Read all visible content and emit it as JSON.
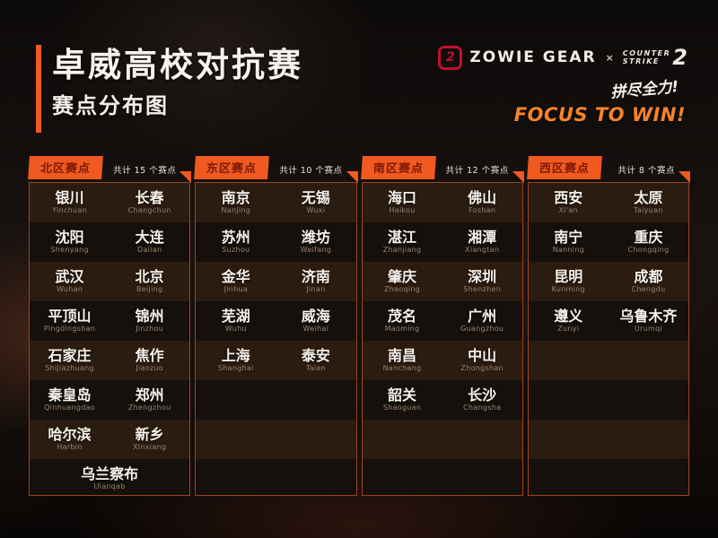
{
  "header": {
    "title": "卓威高校对抗赛",
    "subtitle": "赛点分布图",
    "zowie_icon_glyph": "2",
    "zowie_wordmark": "ZOWIE GEAR",
    "collab_x": "×",
    "cs_line1": "COUNTER",
    "cs_line2": "STRIKE",
    "cs_number": "2",
    "slogan_cn": "拼尽全力!",
    "slogan_en": "FOCUS TO WIN!"
  },
  "colors": {
    "accent_orange": "#f0591f",
    "badge_text": "#7e1a06",
    "zowie_red": "#c0102e",
    "panel_border": "#9c4420",
    "stripe_light": "#2b1c11",
    "stripe_dark": "#15100c",
    "city_text": "#f7f3ec",
    "pinyin_text": "#97826f",
    "slogan_orange": "#f5832a"
  },
  "regions": [
    {
      "label": "北区赛点",
      "count_label": "共计 15 个赛点",
      "cities": [
        {
          "cn": "银川",
          "py": "Yinchuan"
        },
        {
          "cn": "长春",
          "py": "Changchun"
        },
        {
          "cn": "沈阳",
          "py": "Shenyang"
        },
        {
          "cn": "大连",
          "py": "Dalian"
        },
        {
          "cn": "武汉",
          "py": "Wuhan"
        },
        {
          "cn": "北京",
          "py": "Beijing"
        },
        {
          "cn": "平顶山",
          "py": "Pingdingshan"
        },
        {
          "cn": "锦州",
          "py": "Jinzhou"
        },
        {
          "cn": "石家庄",
          "py": "Shijiazhuang"
        },
        {
          "cn": "焦作",
          "py": "Jiaozuo"
        },
        {
          "cn": "秦皇岛",
          "py": "Qinhuangdao"
        },
        {
          "cn": "郑州",
          "py": "Zhengzhou"
        },
        {
          "cn": "哈尔滨",
          "py": "Harbin"
        },
        {
          "cn": "新乡",
          "py": "Xinxiang"
        },
        {
          "cn": "乌兰察布",
          "py": "Ulanqab"
        }
      ]
    },
    {
      "label": "东区赛点",
      "count_label": "共计 10 个赛点",
      "cities": [
        {
          "cn": "南京",
          "py": "Nanjing"
        },
        {
          "cn": "无锡",
          "py": "Wuxi"
        },
        {
          "cn": "苏州",
          "py": "Suzhou"
        },
        {
          "cn": "潍坊",
          "py": "Weifang"
        },
        {
          "cn": "金华",
          "py": "Jinhua"
        },
        {
          "cn": "济南",
          "py": "Jinan"
        },
        {
          "cn": "芜湖",
          "py": "Wuhu"
        },
        {
          "cn": "威海",
          "py": "Weihai"
        },
        {
          "cn": "上海",
          "py": "Shanghai"
        },
        {
          "cn": "泰安",
          "py": "Taian"
        }
      ]
    },
    {
      "label": "南区赛点",
      "count_label": "共计 12 个赛点",
      "cities": [
        {
          "cn": "海口",
          "py": "Haikou"
        },
        {
          "cn": "佛山",
          "py": "Foshan"
        },
        {
          "cn": "湛江",
          "py": "Zhanjiang"
        },
        {
          "cn": "湘潭",
          "py": "Xiangtan"
        },
        {
          "cn": "肇庆",
          "py": "Zhaoqing"
        },
        {
          "cn": "深圳",
          "py": "Shenzhen"
        },
        {
          "cn": "茂名",
          "py": "Maoming"
        },
        {
          "cn": "广州",
          "py": "Guangzhou"
        },
        {
          "cn": "南昌",
          "py": "Nanchang"
        },
        {
          "cn": "中山",
          "py": "Zhongshan"
        },
        {
          "cn": "韶关",
          "py": "Shaoguan"
        },
        {
          "cn": "长沙",
          "py": "Changsha"
        }
      ]
    },
    {
      "label": "西区赛点",
      "count_label": "共计 8 个赛点",
      "cities": [
        {
          "cn": "西安",
          "py": "Xi'an"
        },
        {
          "cn": "太原",
          "py": "Taiyuan"
        },
        {
          "cn": "南宁",
          "py": "Nanning"
        },
        {
          "cn": "重庆",
          "py": "Chongqing"
        },
        {
          "cn": "昆明",
          "py": "Kunming"
        },
        {
          "cn": "成都",
          "py": "Chengdu"
        },
        {
          "cn": "遵义",
          "py": "Zunyi"
        },
        {
          "cn": "乌鲁木齐",
          "py": "Urumqi"
        }
      ]
    }
  ]
}
